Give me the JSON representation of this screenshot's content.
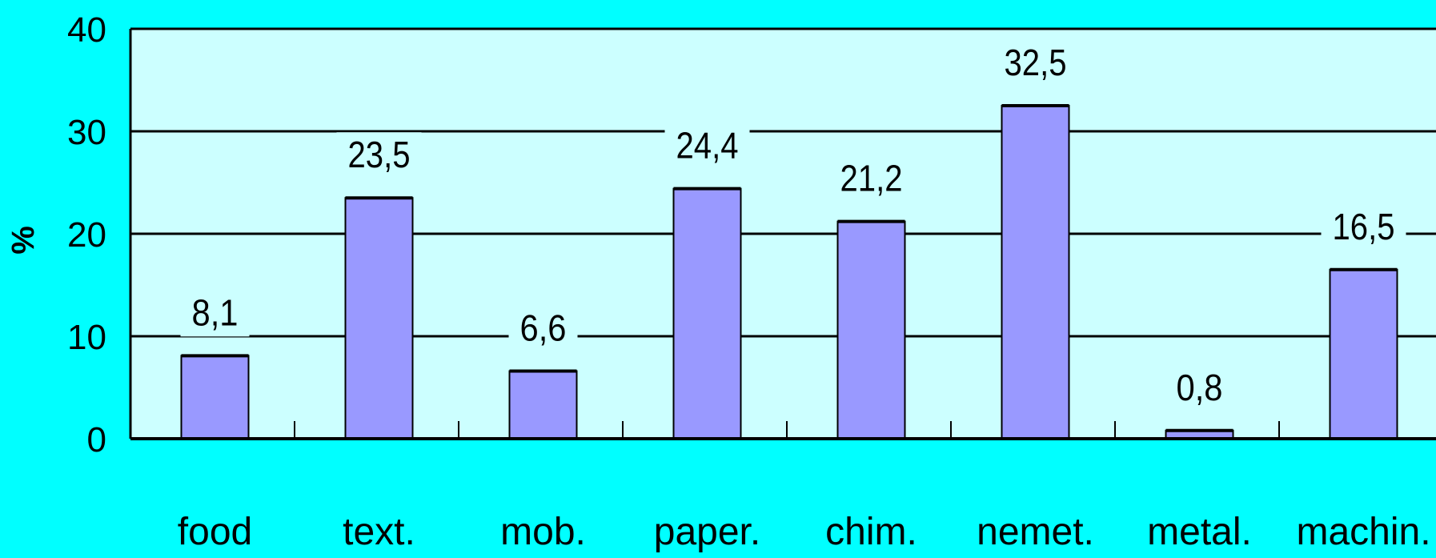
{
  "chart_data": {
    "type": "bar",
    "categories": [
      "food",
      "text.",
      "mob.",
      "paper.",
      "chim.",
      "nemet.",
      "metal.",
      "machin."
    ],
    "values": [
      8.1,
      23.5,
      6.6,
      24.4,
      21.2,
      32.5,
      0.8,
      16.5
    ],
    "data_labels": [
      "8,1",
      "23,5",
      "6,6",
      "24,4",
      "21,2",
      "32,5",
      "0,8",
      "16,5"
    ],
    "ylabel": "%",
    "ylim": [
      0,
      40
    ],
    "yticks": [
      "0",
      "10",
      "20",
      "30",
      "40"
    ],
    "grid": true,
    "colors": {
      "background": "#00ffff",
      "plot_area": "#ccffff",
      "bar_fill": "#9999ff",
      "bar_stroke": "#000000",
      "grid": "#000000"
    }
  }
}
